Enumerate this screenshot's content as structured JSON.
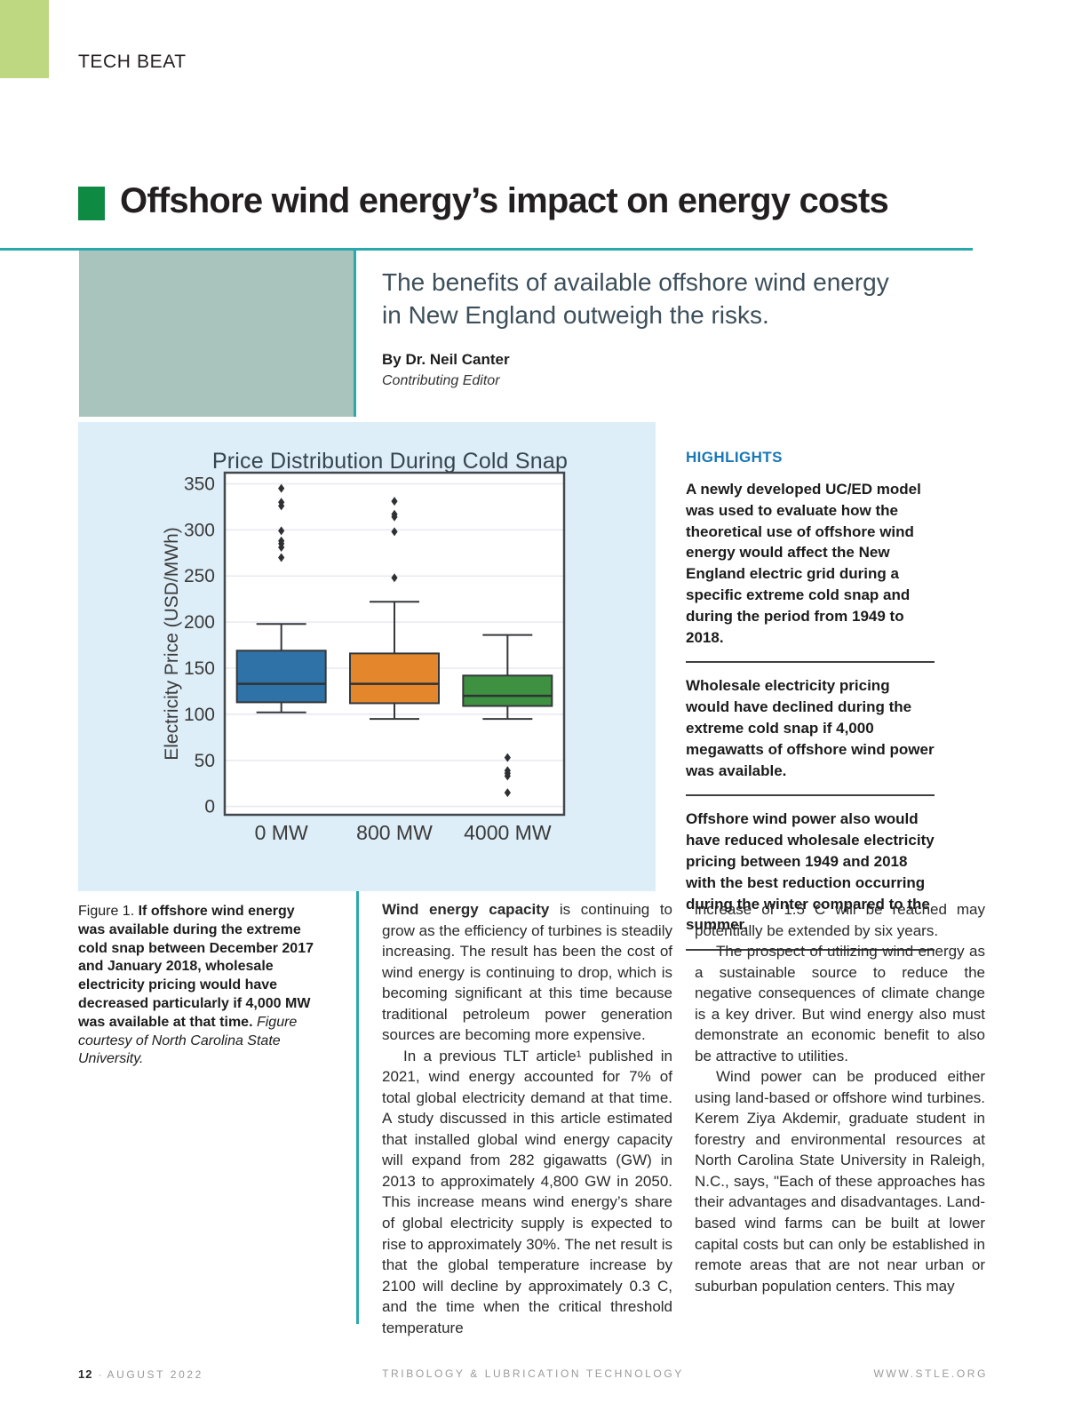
{
  "kicker": "TECH BEAT",
  "headline": "Offshore wind energy’s impact on energy costs",
  "deck": {
    "line1": "The benefits of available offshore wind energy",
    "line2": "in New England outweigh the risks."
  },
  "byline": "By Dr. Neil Canter",
  "byline_role": "Contributing Editor",
  "highlights": {
    "heading": "HIGHLIGHTS",
    "items": [
      "A newly developed UC/ED model was used to evaluate how the theoretical use of offshore wind energy would affect the New England electric grid during a specific extreme cold snap and during the period from 1949 to 2018.",
      "Wholesale electricity pricing would have declined during the extreme cold snap if 4,000 megawatts of offshore wind power was available.",
      "Offshore wind power also would have reduced wholesale electricity pricing between 1949 and 2018 with the best reduction occurring during the winter compared to the summer."
    ]
  },
  "figure_caption": {
    "label": "Figure 1. ",
    "bold": "If offshore wind energy was available during the extreme cold snap between December 2017 and January 2018, wholesale electricity pricing would have decreased particularly if 4,000 MW was available at that time. ",
    "credit": "Figure courtesy of North Carolina State University."
  },
  "body": {
    "middle_column": [
      {
        "lead": "Wind energy capacity",
        "text": " is continuing to grow as the efficiency of turbines is steadily increasing. The result has been the cost of wind energy is continuing to drop, which is becoming significant at this time because traditional petroleum power generation sources are becoming more expensive.",
        "indent": false
      },
      {
        "lead": "",
        "text": "In a previous TLT article¹ published in 2021, wind energy accounted for 7% of total global electricity demand at that time. A study discussed in this article estimated that installed global wind energy capacity will expand from 282 gigawatts (GW) in 2013 to approximately 4,800 GW in 2050. This increase means wind energy’s share of global electricity supply is expected to rise to approximately 30%. The net result is that the global temperature increase by 2100 will decline by approximately 0.3 C, and the time when the critical threshold temperature",
        "indent": true
      }
    ],
    "right_column": [
      {
        "lead": "",
        "text": "increase of 1.5 C will be reached may potentially be extended by six years.",
        "indent": false
      },
      {
        "lead": "",
        "text": "The prospect of utilizing wind energy as a sustainable source to reduce the negative consequences of climate change is a key driver. But wind energy also must demonstrate an economic benefit to also be attractive to utilities.",
        "indent": true
      },
      {
        "lead": "",
        "text": "Wind power can be produced either using land-based or offshore wind turbines. Kerem Ziya Akdemir, graduate student in forestry and environmental resources at North Carolina State University in Raleigh, N.C., says, \"Each of these approaches has their advantages and disadvantages. Land-based wind farms can be built at lower capital costs but can only be established in remote areas that are not near urban or suburban population centers. This may",
        "indent": true
      }
    ]
  },
  "chart_data": {
    "type": "boxplot",
    "title": "Price Distribution During Cold Snap",
    "ylabel": "Electricity Price (USD/MWh)",
    "ylim": [
      0,
      350
    ],
    "yticks": [
      0,
      50,
      100,
      150,
      200,
      250,
      300,
      350
    ],
    "grid": true,
    "categories": [
      "0 MW",
      "800 MW",
      "4000 MW"
    ],
    "series": [
      {
        "label": "0 MW",
        "color": "#2f72a7",
        "whisker_low": 102,
        "q1": 113,
        "median": 133,
        "q3": 169,
        "whisker_high": 198,
        "outliers": [
          270,
          281,
          285,
          288,
          299,
          326,
          330,
          345
        ]
      },
      {
        "label": "800 MW",
        "color": "#e3862c",
        "whisker_low": 95,
        "q1": 112,
        "median": 133,
        "q3": 166,
        "whisker_high": 222,
        "outliers": [
          248,
          298,
          314,
          317,
          331
        ]
      },
      {
        "label": "4000 MW",
        "color": "#3f9142",
        "whisker_low": 95,
        "q1": 109,
        "median": 120,
        "q3": 142,
        "whisker_high": 186,
        "outliers": [
          53,
          39,
          36,
          33,
          15
        ]
      }
    ]
  },
  "footer": {
    "page_number": "12",
    "separator": "·",
    "date": "AUGUST 2022",
    "journal": "TRIBOLOGY & LUBRICATION TECHNOLOGY",
    "website": "WWW.STLE.ORG"
  },
  "colors": {
    "accent_teal": "#2aa8ac",
    "accent_lime": "#bdd880",
    "accent_green": "#0e8a43",
    "panel_blue": "#ddeef8",
    "feature_sage": "#a9c4bc",
    "highlight_blue": "#1877b5",
    "box_blue": "#2f72a7",
    "box_orange": "#e3862c",
    "box_green": "#3f9142"
  }
}
